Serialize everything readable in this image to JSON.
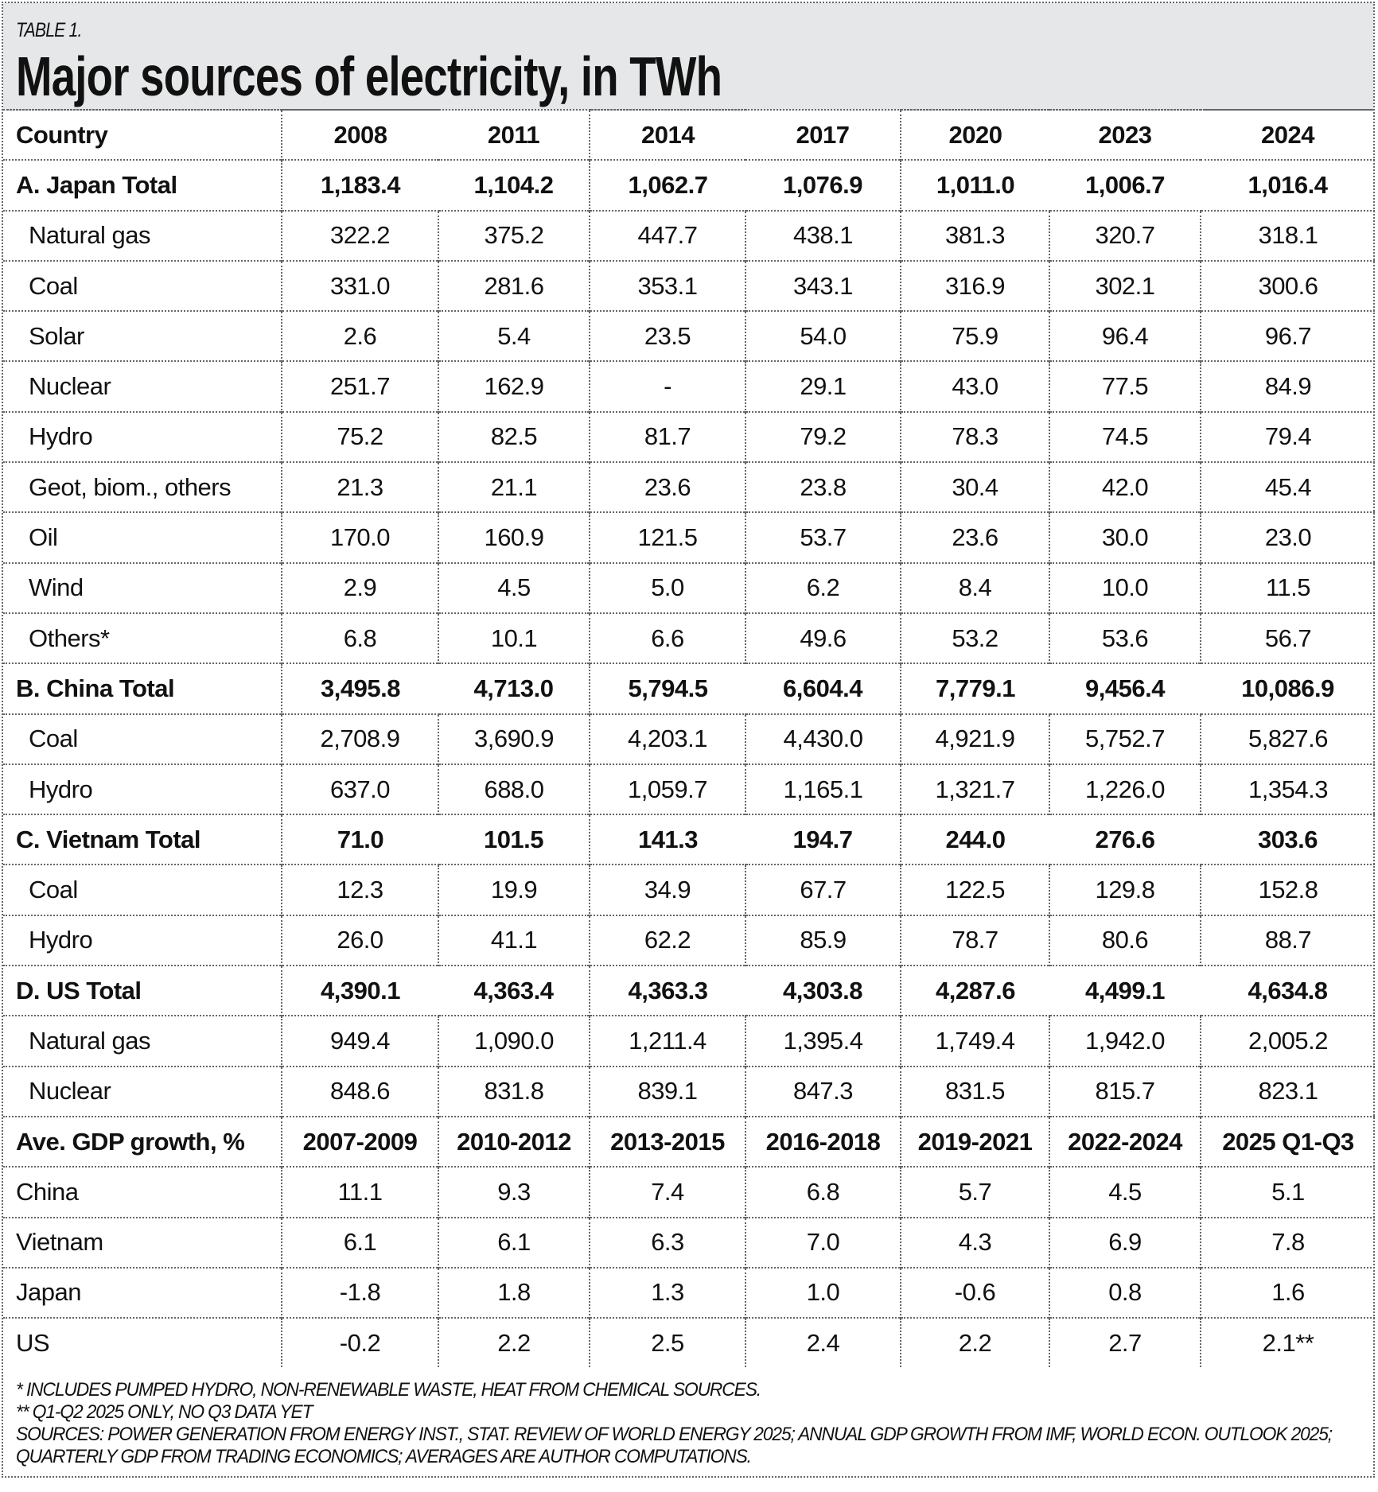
{
  "label": "TABLE 1.",
  "title": "Major sources of electricity, in TWh",
  "header": [
    "Country",
    "2008",
    "2011",
    "2014",
    "2017",
    "2020",
    "2023",
    "2024"
  ],
  "sections": [
    {
      "total": [
        "A. Japan Total",
        "1,183.4",
        "1,104.2",
        "1,062.7",
        "1,076.9",
        "1,011.0",
        "1,006.7",
        "1,016.4"
      ],
      "rows": [
        [
          "Natural gas",
          "322.2",
          "375.2",
          "447.7",
          "438.1",
          "381.3",
          "320.7",
          "318.1"
        ],
        [
          "Coal",
          "331.0",
          "281.6",
          "353.1",
          "343.1",
          "316.9",
          "302.1",
          "300.6"
        ],
        [
          "Solar",
          "2.6",
          "5.4",
          "23.5",
          "54.0",
          "75.9",
          "96.4",
          "96.7"
        ],
        [
          "Nuclear",
          "251.7",
          "162.9",
          "-",
          "29.1",
          "43.0",
          "77.5",
          "84.9"
        ],
        [
          "Hydro",
          "75.2",
          "82.5",
          "81.7",
          "79.2",
          "78.3",
          "74.5",
          "79.4"
        ],
        [
          "Geot, biom., others",
          "21.3",
          "21.1",
          "23.6",
          "23.8",
          "30.4",
          "42.0",
          "45.4"
        ],
        [
          "Oil",
          "170.0",
          "160.9",
          "121.5",
          "53.7",
          "23.6",
          "30.0",
          "23.0"
        ],
        [
          "Wind",
          "2.9",
          "4.5",
          "5.0",
          "6.2",
          "8.4",
          "10.0",
          "11.5"
        ],
        [
          "Others*",
          "6.8",
          "10.1",
          "6.6",
          "49.6",
          "53.2",
          "53.6",
          "56.7"
        ]
      ]
    },
    {
      "total": [
        "B. China Total",
        "3,495.8",
        "4,713.0",
        "5,794.5",
        "6,604.4",
        "7,779.1",
        "9,456.4",
        "10,086.9"
      ],
      "rows": [
        [
          "Coal",
          "2,708.9",
          "3,690.9",
          "4,203.1",
          "4,430.0",
          "4,921.9",
          "5,752.7",
          "5,827.6"
        ],
        [
          "Hydro",
          "637.0",
          "688.0",
          "1,059.7",
          "1,165.1",
          "1,321.7",
          "1,226.0",
          "1,354.3"
        ]
      ]
    },
    {
      "total": [
        "C. Vietnam Total",
        "71.0",
        "101.5",
        "141.3",
        "194.7",
        "244.0",
        "276.6",
        "303.6"
      ],
      "rows": [
        [
          "Coal",
          "12.3",
          "19.9",
          "34.9",
          "67.7",
          "122.5",
          "129.8",
          "152.8"
        ],
        [
          "Hydro",
          "26.0",
          "41.1",
          "62.2",
          "85.9",
          "78.7",
          "80.6",
          "88.7"
        ]
      ]
    },
    {
      "total": [
        "D. US Total",
        "4,390.1",
        "4,363.4",
        "4,363.3",
        "4,303.8",
        "4,287.6",
        "4,499.1",
        "4,634.8"
      ],
      "rows": [
        [
          "Natural gas",
          "949.4",
          "1,090.0",
          "1,211.4",
          "1,395.4",
          "1,749.4",
          "1,942.0",
          "2,005.2"
        ],
        [
          "Nuclear",
          "848.6",
          "831.8",
          "839.1",
          "847.3",
          "831.5",
          "815.7",
          "823.1"
        ]
      ]
    }
  ],
  "gdp_header": [
    "Ave. GDP growth, %",
    "2007-2009",
    "2010-2012",
    "2013-2015",
    "2016-2018",
    "2019-2021",
    "2022-2024",
    "2025 Q1-Q3"
  ],
  "gdp_rows": [
    [
      "China",
      "11.1",
      "9.3",
      "7.4",
      "6.8",
      "5.7",
      "4.5",
      "5.1"
    ],
    [
      "Vietnam",
      "6.1",
      "6.1",
      "6.3",
      "7.0",
      "4.3",
      "6.9",
      "7.8"
    ],
    [
      "Japan",
      "-1.8",
      "1.8",
      "1.3",
      "1.0",
      "-0.6",
      "0.8",
      "1.6"
    ],
    [
      "US",
      "-0.2",
      "2.2",
      "2.5",
      "2.4",
      "2.2",
      "2.7",
      "2.1**"
    ]
  ],
  "footnotes": [
    "* INCLUDES PUMPED HYDRO, NON-RENEWABLE WASTE, HEAT FROM CHEMICAL SOURCES.",
    "** Q1-Q2 2025 ONLY, NO Q3 DATA YET",
    "SOURCES: POWER GENERATION FROM ENERGY INST., STAT. REVIEW OF WORLD ENERGY 2025; ANNUAL GDP GROWTH FROM IMF, WORLD ECON. OUTLOOK 2025;",
    "QUARTERLY GDP FROM TRADING ECONOMICS; AVERAGES ARE AUTHOR COMPUTATIONS."
  ]
}
